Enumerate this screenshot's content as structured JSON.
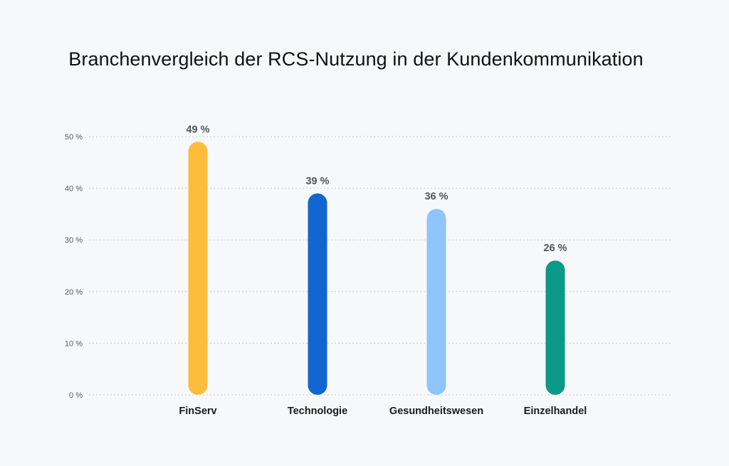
{
  "chart_data": {
    "type": "bar",
    "title": "Branchenvergleich der RCS-Nutzung in der Kundenkommunikation",
    "xlabel": "",
    "ylabel": "",
    "ylim": [
      0,
      50
    ],
    "yticks": [
      0,
      10,
      20,
      30,
      40,
      50
    ],
    "ytick_labels": [
      "0 %",
      "10 %",
      "20 %",
      "30 %",
      "40 %",
      "50 %"
    ],
    "grid": true,
    "categories": [
      "FinServ",
      "Technologie",
      "Gesundheitswesen",
      "Einzelhandel"
    ],
    "values": [
      49,
      39,
      36,
      26
    ],
    "data_labels": [
      "49 %",
      "39 %",
      "36 %",
      "26 %"
    ],
    "colors": [
      "#fdbd3c",
      "#1166d1",
      "#8ec5fb",
      "#0b9988"
    ]
  }
}
